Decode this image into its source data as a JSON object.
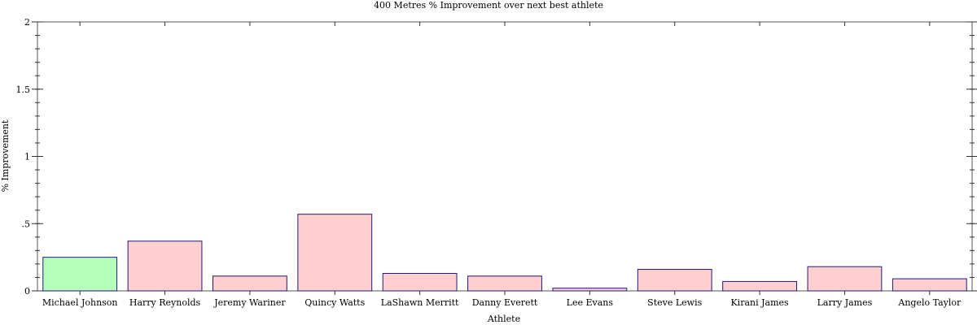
{
  "chart_data": {
    "type": "bar",
    "title": "400 Metres % Improvement over next best athlete",
    "xlabel": "Athlete",
    "ylabel": "% Improvement",
    "categories": [
      "Michael Johnson",
      "Harry Reynolds",
      "Jeremy Wariner",
      "Quincy Watts",
      "LaShawn Merritt",
      "Danny Everett",
      "Lee Evans",
      "Steve Lewis",
      "Kirani James",
      "Larry James",
      "Angelo Taylor"
    ],
    "values": [
      0.25,
      0.37,
      0.11,
      0.57,
      0.13,
      0.11,
      0.02,
      0.16,
      0.07,
      0.18,
      0.09
    ],
    "bar_colors": [
      "#b5ffb9",
      "#ffcfcf",
      "#ffcfcf",
      "#ffcfcf",
      "#ffcfcf",
      "#ffcfcf",
      "#ffcfcf",
      "#ffcfcf",
      "#ffcfcf",
      "#ffcfcf",
      "#ffcfcf"
    ],
    "bar_edge_color": "#1f1a7a",
    "ylim": [
      0,
      2
    ],
    "yticks": [
      0,
      0.5,
      1,
      1.5,
      2
    ],
    "ytick_labels": [
      "0",
      ".5",
      "1",
      "1.5",
      "2"
    ],
    "grid": false,
    "legend": "none"
  }
}
